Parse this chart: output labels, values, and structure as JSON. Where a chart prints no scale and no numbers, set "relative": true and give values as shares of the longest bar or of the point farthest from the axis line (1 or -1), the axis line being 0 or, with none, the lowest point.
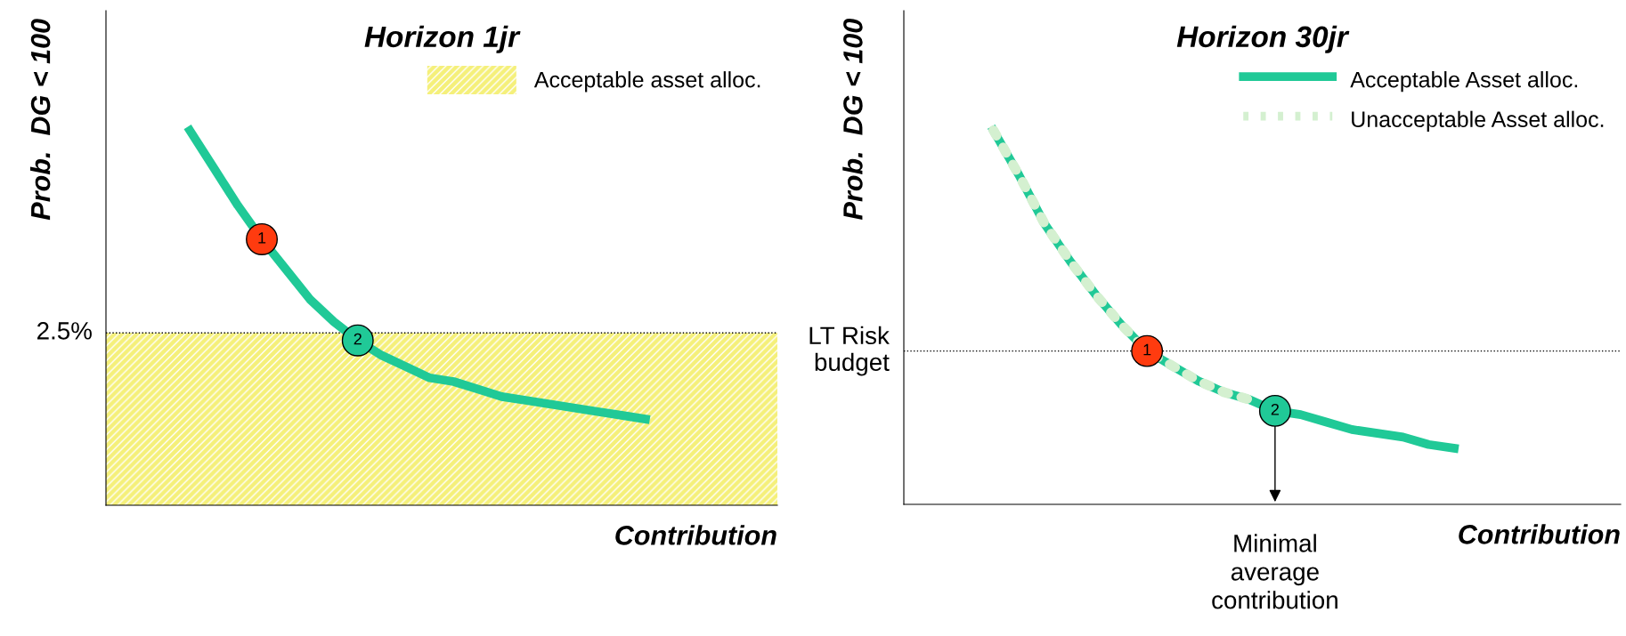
{
  "chart_data": [
    {
      "type": "line",
      "title": "Horizon 1jr",
      "xlabel": "Contribution",
      "ylabel": "Prob.  DG < 100",
      "relative": true,
      "legend": "top right",
      "categories": [
        null,
        null,
        null,
        null,
        null,
        null,
        null,
        null,
        null,
        null,
        null,
        null,
        null,
        null,
        null,
        null,
        null,
        null,
        null,
        null,
        null,
        null,
        null,
        null,
        null,
        null,
        null,
        null
      ],
      "series": [
        {
          "color": "#20c997",
          "line_style": "solid",
          "values": [
            null,
            null,
            null,
            1,
            0.9,
            0.8,
            0.71,
            0.63,
            0.55,
            0.49,
            0.44,
            0.4,
            0.37,
            0.34,
            0.33,
            0.31,
            0.29,
            0.28,
            0.27,
            0.26,
            0.25,
            0.24,
            0.23,
            null,
            null,
            null,
            null,
            null
          ]
        }
      ],
      "ref_lines": [
        {
          "axis": "y",
          "value": 0.46,
          "color": "#000000",
          "line_style": "dotted"
        }
      ],
      "bands": [
        {
          "axis": "y",
          "from": 0,
          "to": 0.46,
          "label": "Acceptable asset alloc.",
          "color": "#f5f07a"
        }
      ],
      "annotations": [
        "2.5%",
        {
          "text": "1",
          "y": 0.71
        },
        {
          "text": "2",
          "y": 0.44
        }
      ]
    },
    {
      "type": "line",
      "title": "Horizon 30jr",
      "xlabel": "Contribution",
      "ylabel": "Prob.  DG < 100",
      "relative": true,
      "legend": "top right",
      "categories": [
        null,
        null,
        null,
        null,
        null,
        null,
        null,
        null,
        null,
        null,
        null,
        null,
        null,
        null,
        null,
        null,
        null,
        null,
        null,
        null,
        null,
        null,
        null,
        null,
        null,
        null,
        null,
        null
      ],
      "series": [
        {
          "name": "Acceptable Asset alloc.",
          "color": "#20c997",
          "line_style": "solid",
          "values": [
            null,
            null,
            null,
            1,
            0.88,
            0.75,
            0.65,
            0.56,
            0.48,
            0.41,
            0.37,
            0.33,
            0.3,
            0.28,
            0.25,
            0.24,
            0.22,
            0.2,
            0.19,
            0.18,
            0.16,
            0.15,
            null,
            null,
            null,
            null,
            null,
            null
          ]
        },
        {
          "name": "Unacceptable Asset alloc.",
          "color": "#d4f0d0",
          "line_style": "dotted",
          "values": [
            null,
            null,
            null,
            1,
            0.88,
            0.75,
            0.65,
            0.56,
            0.48,
            0.41,
            0.37,
            0.33,
            0.3,
            0.28,
            null,
            null,
            null,
            null,
            null,
            null,
            null,
            null,
            null,
            null,
            null,
            null,
            null,
            null
          ]
        }
      ],
      "ref_lines": [
        {
          "axis": "y",
          "value": 0.41,
          "label": "LT Risk\nbudget",
          "color": "#000000",
          "line_style": "dotted"
        }
      ],
      "annotations": [
        {
          "text": "1",
          "y": 0.41
        },
        {
          "text": "2",
          "y": 0.25
        },
        "Minimal\naverage\ncontribution"
      ]
    }
  ]
}
